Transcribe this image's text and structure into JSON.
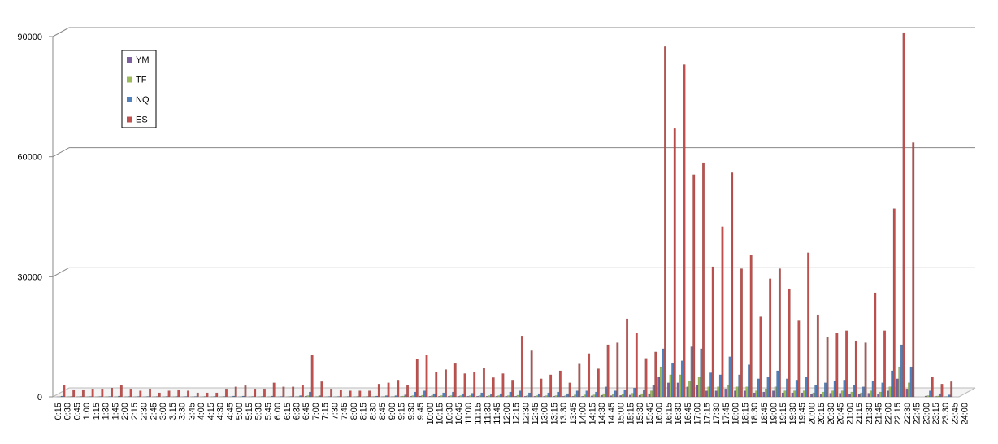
{
  "chart_data": {
    "type": "bar",
    "categories": [
      "0:15",
      "0:30",
      "0:45",
      "1:00",
      "1:15",
      "1:30",
      "1:45",
      "2:00",
      "2:15",
      "2:30",
      "2:45",
      "3:00",
      "3:15",
      "3:30",
      "3:45",
      "4:00",
      "4:15",
      "4:30",
      "4:45",
      "5:00",
      "5:15",
      "5:30",
      "5:45",
      "6:00",
      "6:15",
      "6:30",
      "6:45",
      "7:00",
      "7:15",
      "7:30",
      "7:45",
      "8:00",
      "8:15",
      "8:30",
      "8:45",
      "9:00",
      "9:15",
      "9:30",
      "9:45",
      "10:00",
      "10:15",
      "10:30",
      "10:45",
      "11:00",
      "11:15",
      "11:30",
      "11:45",
      "12:00",
      "12:15",
      "12:30",
      "12:45",
      "13:00",
      "13:15",
      "13:30",
      "13:45",
      "14:00",
      "14:15",
      "14:30",
      "14:45",
      "15:00",
      "15:15",
      "15:30",
      "15:45",
      "16:00",
      "16:15",
      "16:30",
      "16:45",
      "17:00",
      "17:15",
      "17:30",
      "17:45",
      "18:00",
      "18:15",
      "18:30",
      "18:45",
      "19:00",
      "19:15",
      "19:30",
      "19:45",
      "20:00",
      "20:15",
      "20:30",
      "20:45",
      "21:00",
      "21:15",
      "21:30",
      "21:45",
      "22:00",
      "22:15",
      "22:30",
      "22:45",
      "23:00",
      "23:15",
      "23:30",
      "23:45",
      "24:00"
    ],
    "series": [
      {
        "name": "YM",
        "color": "#7d60a0",
        "values": [
          20,
          20,
          20,
          20,
          20,
          20,
          20,
          20,
          20,
          20,
          20,
          20,
          20,
          20,
          20,
          20,
          20,
          20,
          20,
          20,
          20,
          20,
          20,
          20,
          20,
          50,
          150,
          50,
          20,
          20,
          20,
          20,
          20,
          50,
          50,
          50,
          100,
          150,
          200,
          150,
          150,
          150,
          150,
          150,
          150,
          150,
          150,
          150,
          150,
          150,
          150,
          150,
          150,
          150,
          150,
          150,
          250,
          400,
          300,
          350,
          450,
          400,
          800,
          5000,
          3500,
          3500,
          2500,
          3000,
          1500,
          1500,
          2000,
          1500,
          1500,
          1000,
          1200,
          1500,
          1000,
          1000,
          1000,
          600,
          700,
          900,
          900,
          700,
          600,
          900,
          700,
          1500,
          4500,
          2000,
          0,
          200,
          100,
          50,
          0,
          0
        ]
      },
      {
        "name": "TF",
        "color": "#9bbb59",
        "values": [
          50,
          50,
          50,
          50,
          50,
          50,
          50,
          50,
          50,
          50,
          50,
          50,
          50,
          50,
          50,
          50,
          50,
          50,
          50,
          50,
          50,
          50,
          50,
          50,
          50,
          100,
          300,
          100,
          50,
          50,
          50,
          50,
          50,
          100,
          100,
          100,
          200,
          300,
          400,
          300,
          300,
          300,
          300,
          300,
          300,
          300,
          300,
          300,
          400,
          300,
          300,
          300,
          300,
          300,
          500,
          500,
          500,
          800,
          600,
          700,
          900,
          800,
          1500,
          7500,
          5500,
          5500,
          4000,
          5000,
          2500,
          2500,
          3000,
          2500,
          2500,
          1500,
          2000,
          2500,
          1500,
          1500,
          1500,
          1000,
          1200,
          1500,
          1500,
          1200,
          1000,
          1500,
          1200,
          2500,
          7500,
          3500,
          0,
          300,
          200,
          100,
          0,
          0
        ]
      },
      {
        "name": "NQ",
        "color": "#4f81bd",
        "values": [
          200,
          100,
          100,
          100,
          100,
          100,
          200,
          100,
          100,
          100,
          100,
          100,
          100,
          100,
          100,
          100,
          100,
          100,
          200,
          200,
          100,
          100,
          200,
          100,
          100,
          300,
          1200,
          300,
          100,
          100,
          100,
          100,
          100,
          200,
          300,
          300,
          500,
          1200,
          1500,
          800,
          1000,
          1200,
          800,
          900,
          1000,
          700,
          800,
          1200,
          1500,
          1000,
          800,
          1000,
          1200,
          800,
          1500,
          1500,
          1200,
          2500,
          1500,
          1800,
          2200,
          1800,
          3000,
          12000,
          8500,
          9000,
          12500,
          12000,
          6000,
          5500,
          10000,
          5500,
          8000,
          4500,
          5000,
          6500,
          4500,
          4200,
          5000,
          3000,
          3500,
          4000,
          4200,
          3000,
          2500,
          4000,
          3500,
          6500,
          13000,
          7500,
          0,
          1500,
          800,
          500,
          0,
          0
        ]
      },
      {
        "name": "ES",
        "color": "#c0504d",
        "values": [
          3000,
          1800,
          1800,
          2000,
          2000,
          2200,
          3000,
          2000,
          1500,
          2000,
          1000,
          1500,
          1800,
          1500,
          1000,
          1000,
          1000,
          2000,
          2500,
          2800,
          2000,
          2000,
          3500,
          2500,
          2500,
          3000,
          10500,
          3800,
          2000,
          1800,
          1500,
          1500,
          1500,
          3200,
          3500,
          4200,
          3000,
          9500,
          10500,
          6200,
          6800,
          8300,
          5800,
          6200,
          7200,
          4800,
          5800,
          4200,
          15200,
          11500,
          4500,
          5500,
          6500,
          3500,
          8200,
          10800,
          7000,
          13000,
          13500,
          19500,
          16000,
          9600,
          11200,
          87500,
          67000,
          83000,
          55500,
          58500,
          32500,
          42500,
          56000,
          32000,
          35500,
          20000,
          29500,
          32000,
          27000,
          19000,
          36000,
          20500,
          15000,
          16000,
          16500,
          14000,
          13500,
          26000,
          16500,
          47000,
          91000,
          63500,
          0,
          5000,
          3200,
          3800,
          0,
          0
        ]
      }
    ],
    "ylim": [
      0,
      90000
    ],
    "yticks": [
      0,
      30000,
      60000,
      90000
    ],
    "grid": true,
    "legend": "top-left"
  }
}
